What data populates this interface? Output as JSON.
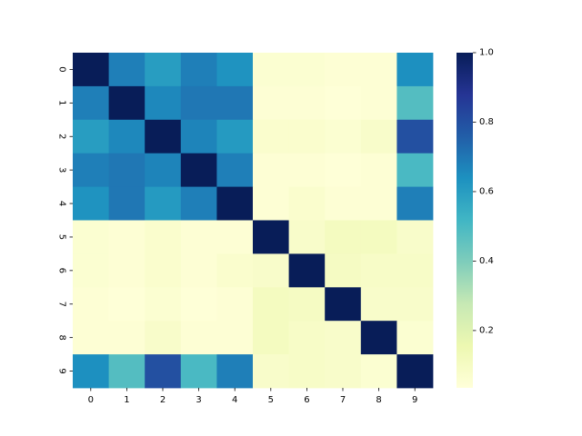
{
  "chart_data": {
    "type": "heatmap",
    "x_categories": [
      "0",
      "1",
      "2",
      "3",
      "4",
      "5",
      "6",
      "7",
      "8",
      "9"
    ],
    "y_categories": [
      "0",
      "1",
      "2",
      "3",
      "4",
      "5",
      "6",
      "7",
      "8",
      "9"
    ],
    "values": [
      [
        1.0,
        0.68,
        0.6,
        0.68,
        0.63,
        0.06,
        0.06,
        0.05,
        0.05,
        0.64
      ],
      [
        0.68,
        1.0,
        0.66,
        0.7,
        0.7,
        0.05,
        0.05,
        0.04,
        0.05,
        0.48
      ],
      [
        0.6,
        0.66,
        1.0,
        0.67,
        0.61,
        0.07,
        0.07,
        0.06,
        0.08,
        0.8
      ],
      [
        0.68,
        0.7,
        0.67,
        1.0,
        0.68,
        0.05,
        0.05,
        0.04,
        0.05,
        0.5
      ],
      [
        0.63,
        0.7,
        0.61,
        0.68,
        1.0,
        0.05,
        0.07,
        0.05,
        0.05,
        0.68
      ],
      [
        0.06,
        0.05,
        0.07,
        0.05,
        0.05,
        1.0,
        0.08,
        0.11,
        0.11,
        0.08
      ],
      [
        0.06,
        0.05,
        0.07,
        0.05,
        0.07,
        0.08,
        1.0,
        0.1,
        0.09,
        0.09
      ],
      [
        0.05,
        0.04,
        0.06,
        0.04,
        0.05,
        0.11,
        0.1,
        1.0,
        0.08,
        0.08
      ],
      [
        0.05,
        0.05,
        0.08,
        0.05,
        0.05,
        0.11,
        0.09,
        0.08,
        1.0,
        0.06
      ],
      [
        0.64,
        0.48,
        0.8,
        0.5,
        0.68,
        0.08,
        0.09,
        0.08,
        0.06,
        1.0
      ]
    ],
    "colormap": "YlGnBu",
    "colormap_stops": [
      "#ffffd9",
      "#edf8b1",
      "#c7e9b4",
      "#7fcdbb",
      "#41b6c4",
      "#1d91c0",
      "#225ea8",
      "#253494",
      "#081d58"
    ],
    "vmin": 0.035,
    "vmax": 1.0,
    "colorbar": {
      "ticks": [
        0.2,
        0.4,
        0.6,
        0.8,
        1.0
      ],
      "tick_labels": [
        "0.2",
        "0.4",
        "0.6",
        "0.8",
        "1.0"
      ],
      "placement": "right"
    },
    "title": "",
    "xlabel": "",
    "ylabel": ""
  }
}
